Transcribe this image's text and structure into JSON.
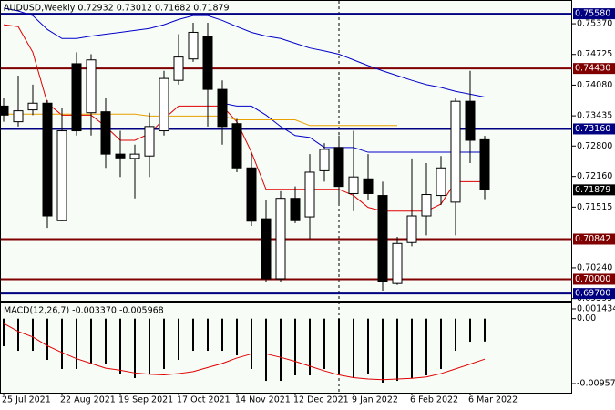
{
  "chart_data": [
    {
      "type": "candlestick",
      "title": "AUDUSD,Weekly  0.72932 0.73012 0.71682 0.71879",
      "categories": [
        "25 Jul 2021",
        null,
        null,
        null,
        "22 Aug 2021",
        null,
        null,
        null,
        "19 Sep 2021",
        null,
        null,
        null,
        "17 Oct 2021",
        null,
        null,
        null,
        "14 Nov 2021",
        null,
        null,
        null,
        "12 Dec 2021",
        null,
        null,
        null,
        "9 Jan 2022",
        null,
        null,
        null,
        "6 Feb 2022",
        null,
        null,
        null,
        "6 Mar 2022",
        null
      ],
      "open": [
        0.7364,
        0.7331,
        0.7356,
        0.737,
        0.7123,
        0.7453,
        0.735,
        0.7352,
        0.7263,
        0.7254,
        0.7259,
        0.7312,
        0.7418,
        0.7463,
        0.7511,
        0.7399,
        0.7327,
        0.7234,
        0.7127,
        0.7001,
        0.717,
        0.7131,
        0.7228,
        0.7277,
        0.718,
        0.7211,
        0.7176,
        0.6991,
        0.7077,
        0.7133,
        0.7176,
        0.7162,
        0.7374,
        0.72932
      ],
      "high": [
        0.738,
        0.7428,
        0.7409,
        0.7376,
        0.736,
        0.7477,
        0.7473,
        0.738,
        0.7312,
        0.7283,
        0.735,
        0.7438,
        0.7515,
        0.7539,
        0.7539,
        0.7418,
        0.7337,
        0.7263,
        0.7166,
        0.7185,
        0.7195,
        0.7263,
        0.7286,
        0.7302,
        0.7312,
        0.7263,
        0.7205,
        0.7089,
        0.7254,
        0.7244,
        0.7259,
        0.738,
        0.7438,
        0.73012
      ],
      "low": [
        0.7331,
        0.7321,
        0.7345,
        0.7108,
        0.7122,
        0.7302,
        0.7302,
        0.7234,
        0.7215,
        0.717,
        0.7215,
        0.7302,
        0.7409,
        0.7457,
        0.7321,
        0.7283,
        0.7225,
        0.7112,
        0.6995,
        0.6995,
        0.7118,
        0.7085,
        0.7205,
        0.7156,
        0.7143,
        0.7166,
        0.6976,
        0.6988,
        0.7069,
        0.7092,
        0.7156,
        0.7092,
        0.7244,
        0.71682
      ],
      "close": [
        0.7345,
        0.7354,
        0.737,
        0.7133,
        0.7312,
        0.7312,
        0.7461,
        0.7263,
        0.7255,
        0.7263,
        0.7321,
        0.7422,
        0.7467,
        0.7519,
        0.7399,
        0.7321,
        0.7234,
        0.7122,
        0.7001,
        0.717,
        0.7123,
        0.7225,
        0.7273,
        0.7195,
        0.7215,
        0.718,
        0.6995,
        0.7075,
        0.7133,
        0.7178,
        0.7234,
        0.7374,
        0.7292,
        0.71879
      ],
      "up_color": "#ffffff",
      "down_color": "#000000",
      "overlays": [
        {
          "color": "#e00000",
          "values": [
            0.7535,
            0.7531,
            0.7477,
            0.737,
            0.7345,
            0.7345,
            0.7345,
            0.7321,
            0.7292,
            0.7292,
            0.7306,
            0.7337,
            0.7364,
            0.7364,
            0.7364,
            0.7364,
            0.7331,
            0.7267,
            0.7189,
            0.7189,
            0.7189,
            0.7189,
            0.7189,
            0.7189,
            0.7176,
            0.7151,
            0.7143,
            0.7143,
            0.7143,
            0.7143,
            0.7158,
            0.7205,
            0.7205,
            0.7205
          ]
        },
        {
          "color": "#0000c8",
          "values": [
            0.757,
            0.7564,
            0.7554,
            0.7525,
            0.7506,
            0.7506,
            0.7511,
            0.7515,
            0.7519,
            0.7523,
            0.7527,
            0.7535,
            0.7546,
            0.7554,
            0.7554,
            0.7544,
            0.7531,
            0.7519,
            0.7511,
            0.7506,
            0.7496,
            0.7486,
            0.748,
            0.7473,
            0.7461,
            0.7449,
            0.7438,
            0.7428,
            0.7418,
            0.7409,
            0.7403,
            0.7395,
            0.7389,
            0.7383
          ]
        },
        {
          "color": "#0000c8",
          "values": [
            null,
            null,
            null,
            null,
            null,
            null,
            null,
            null,
            null,
            null,
            null,
            null,
            null,
            null,
            null,
            0.737,
            0.7364,
            0.7364,
            0.7345,
            0.7321,
            0.7302,
            0.7298,
            0.7277,
            0.7277,
            0.7277,
            0.7267,
            0.7267,
            0.7267,
            0.7267,
            0.7267,
            0.7267,
            0.7267,
            0.7267,
            0.7267
          ]
        },
        {
          "color": "#e8a000",
          "values": [
            0.7347,
            0.7347,
            0.7347,
            0.7347,
            0.7347,
            0.7347,
            0.7347,
            0.7347,
            0.7347,
            0.7347,
            0.7343,
            0.7343,
            0.7343,
            0.7343,
            0.7343,
            0.7343,
            0.7335,
            0.7335,
            0.7335,
            0.7335,
            0.7335,
            0.7323,
            0.7323,
            0.7323,
            0.7323,
            0.7323,
            0.7323,
            0.7323,
            null,
            null,
            null,
            null,
            null,
            null
          ]
        }
      ],
      "levels": [
        {
          "value": 0.7558,
          "label": "0.75580",
          "color": "#000080"
        },
        {
          "value": 0.7443,
          "label": "0.74430",
          "color": "#800000"
        },
        {
          "value": 0.7316,
          "label": "0.73160",
          "color": "#000080"
        },
        {
          "value": 0.71879,
          "label": "0.71879",
          "color": "#000000"
        },
        {
          "value": 0.70842,
          "label": "0.70842",
          "color": "#800000"
        },
        {
          "value": 0.7,
          "label": "0.70000",
          "color": "#800000"
        },
        {
          "value": 0.697,
          "label": "0.69700",
          "color": "#000080"
        }
      ],
      "ylim": [
        0.6953,
        0.7585
      ],
      "yticks": [
        {
          "value": 0.7537,
          "label": "0.75370"
        },
        {
          "value": 0.74725,
          "label": "0.74725"
        },
        {
          "value": 0.7408,
          "label": "0.74080"
        },
        {
          "value": 0.73435,
          "label": "0.73435"
        },
        {
          "value": 0.728,
          "label": "0.72800"
        },
        {
          "value": 0.7216,
          "label": "0.72160"
        },
        {
          "value": 0.71515,
          "label": "0.71515"
        },
        {
          "value": 0.7024,
          "label": "0.70240"
        },
        {
          "value": 0.69595,
          "label": "0.69595"
        }
      ]
    },
    {
      "type": "bar",
      "title": "MACD(12,26,7) -0.003370 -0.005968",
      "series": [
        {
          "type": "bar",
          "color": "#000000",
          "values": [
            -0.00407,
            -0.00474,
            -0.00474,
            -0.00608,
            -0.00742,
            -0.00742,
            -0.00675,
            -0.00675,
            -0.00809,
            -0.00876,
            -0.00809,
            -0.00742,
            -0.00608,
            -0.00474,
            -0.00474,
            -0.00474,
            -0.00541,
            -0.00742,
            -0.00917,
            -0.00917,
            -0.00836,
            -0.00836,
            -0.00742,
            -0.00809,
            -0.00876,
            -0.00809,
            -0.00943,
            -0.00917,
            -0.00876,
            -0.00836,
            -0.00742,
            -0.00474,
            -0.0034,
            -0.00337
          ]
        },
        {
          "type": "line",
          "color": "#e00000",
          "values": [
            -0.0007,
            -0.0019,
            -0.0027,
            -0.004,
            -0.005,
            -0.0059,
            -0.0066,
            -0.0073,
            -0.0076,
            -0.008,
            -0.0082,
            -0.0083,
            -0.0081,
            -0.0078,
            -0.0072,
            -0.0066,
            -0.0058,
            -0.0052,
            -0.0052,
            -0.0057,
            -0.0063,
            -0.007,
            -0.0077,
            -0.0083,
            -0.0087,
            -0.0089,
            -0.009,
            -0.0089,
            -0.0088,
            -0.0086,
            -0.0081,
            -0.0074,
            -0.0067,
            -0.005968
          ]
        }
      ],
      "ylim": [
        -0.01091,
        0.00224
      ],
      "yticks": [
        0.001434,
        {
          "value": 0,
          "label": "0.00"
        },
        -0.009571
      ]
    }
  ]
}
